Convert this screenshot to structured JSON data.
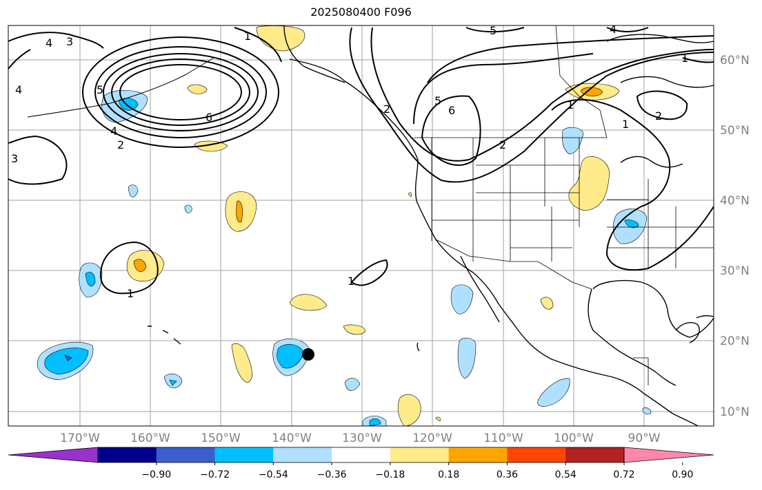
{
  "title": "2025080400 F096",
  "latitude_labels": [
    "60°N",
    "50°N",
    "40°N",
    "30°N",
    "20°N",
    "10°N"
  ],
  "longitude_labels": [
    "170°W",
    "160°W",
    "150°W",
    "140°W",
    "130°W",
    "120°W",
    "110°W",
    "100°W",
    "90°W"
  ],
  "colorbar": {
    "tick_labels": [
      "−0.90",
      "−0.72",
      "−0.54",
      "−0.36",
      "−0.18",
      "0.18",
      "0.36",
      "0.54",
      "0.72",
      "0.90"
    ],
    "colors": [
      "#9932cc",
      "#00008b",
      "#3a5fcd",
      "#00bfff",
      "#b0e0ff",
      "#ffffff",
      "#ffeb8a",
      "#ffa500",
      "#ff4500",
      "#b22222",
      "#ff88aa"
    ]
  },
  "contour_labels": [
    "1",
    "2",
    "2",
    "3",
    "3",
    "4",
    "4",
    "4",
    "4",
    "5",
    "5",
    "5",
    "6",
    "6",
    "1",
    "1",
    "1",
    "1",
    "2",
    "2",
    "1"
  ],
  "marker": {
    "type": "filled-circle",
    "color": "#000000"
  }
}
